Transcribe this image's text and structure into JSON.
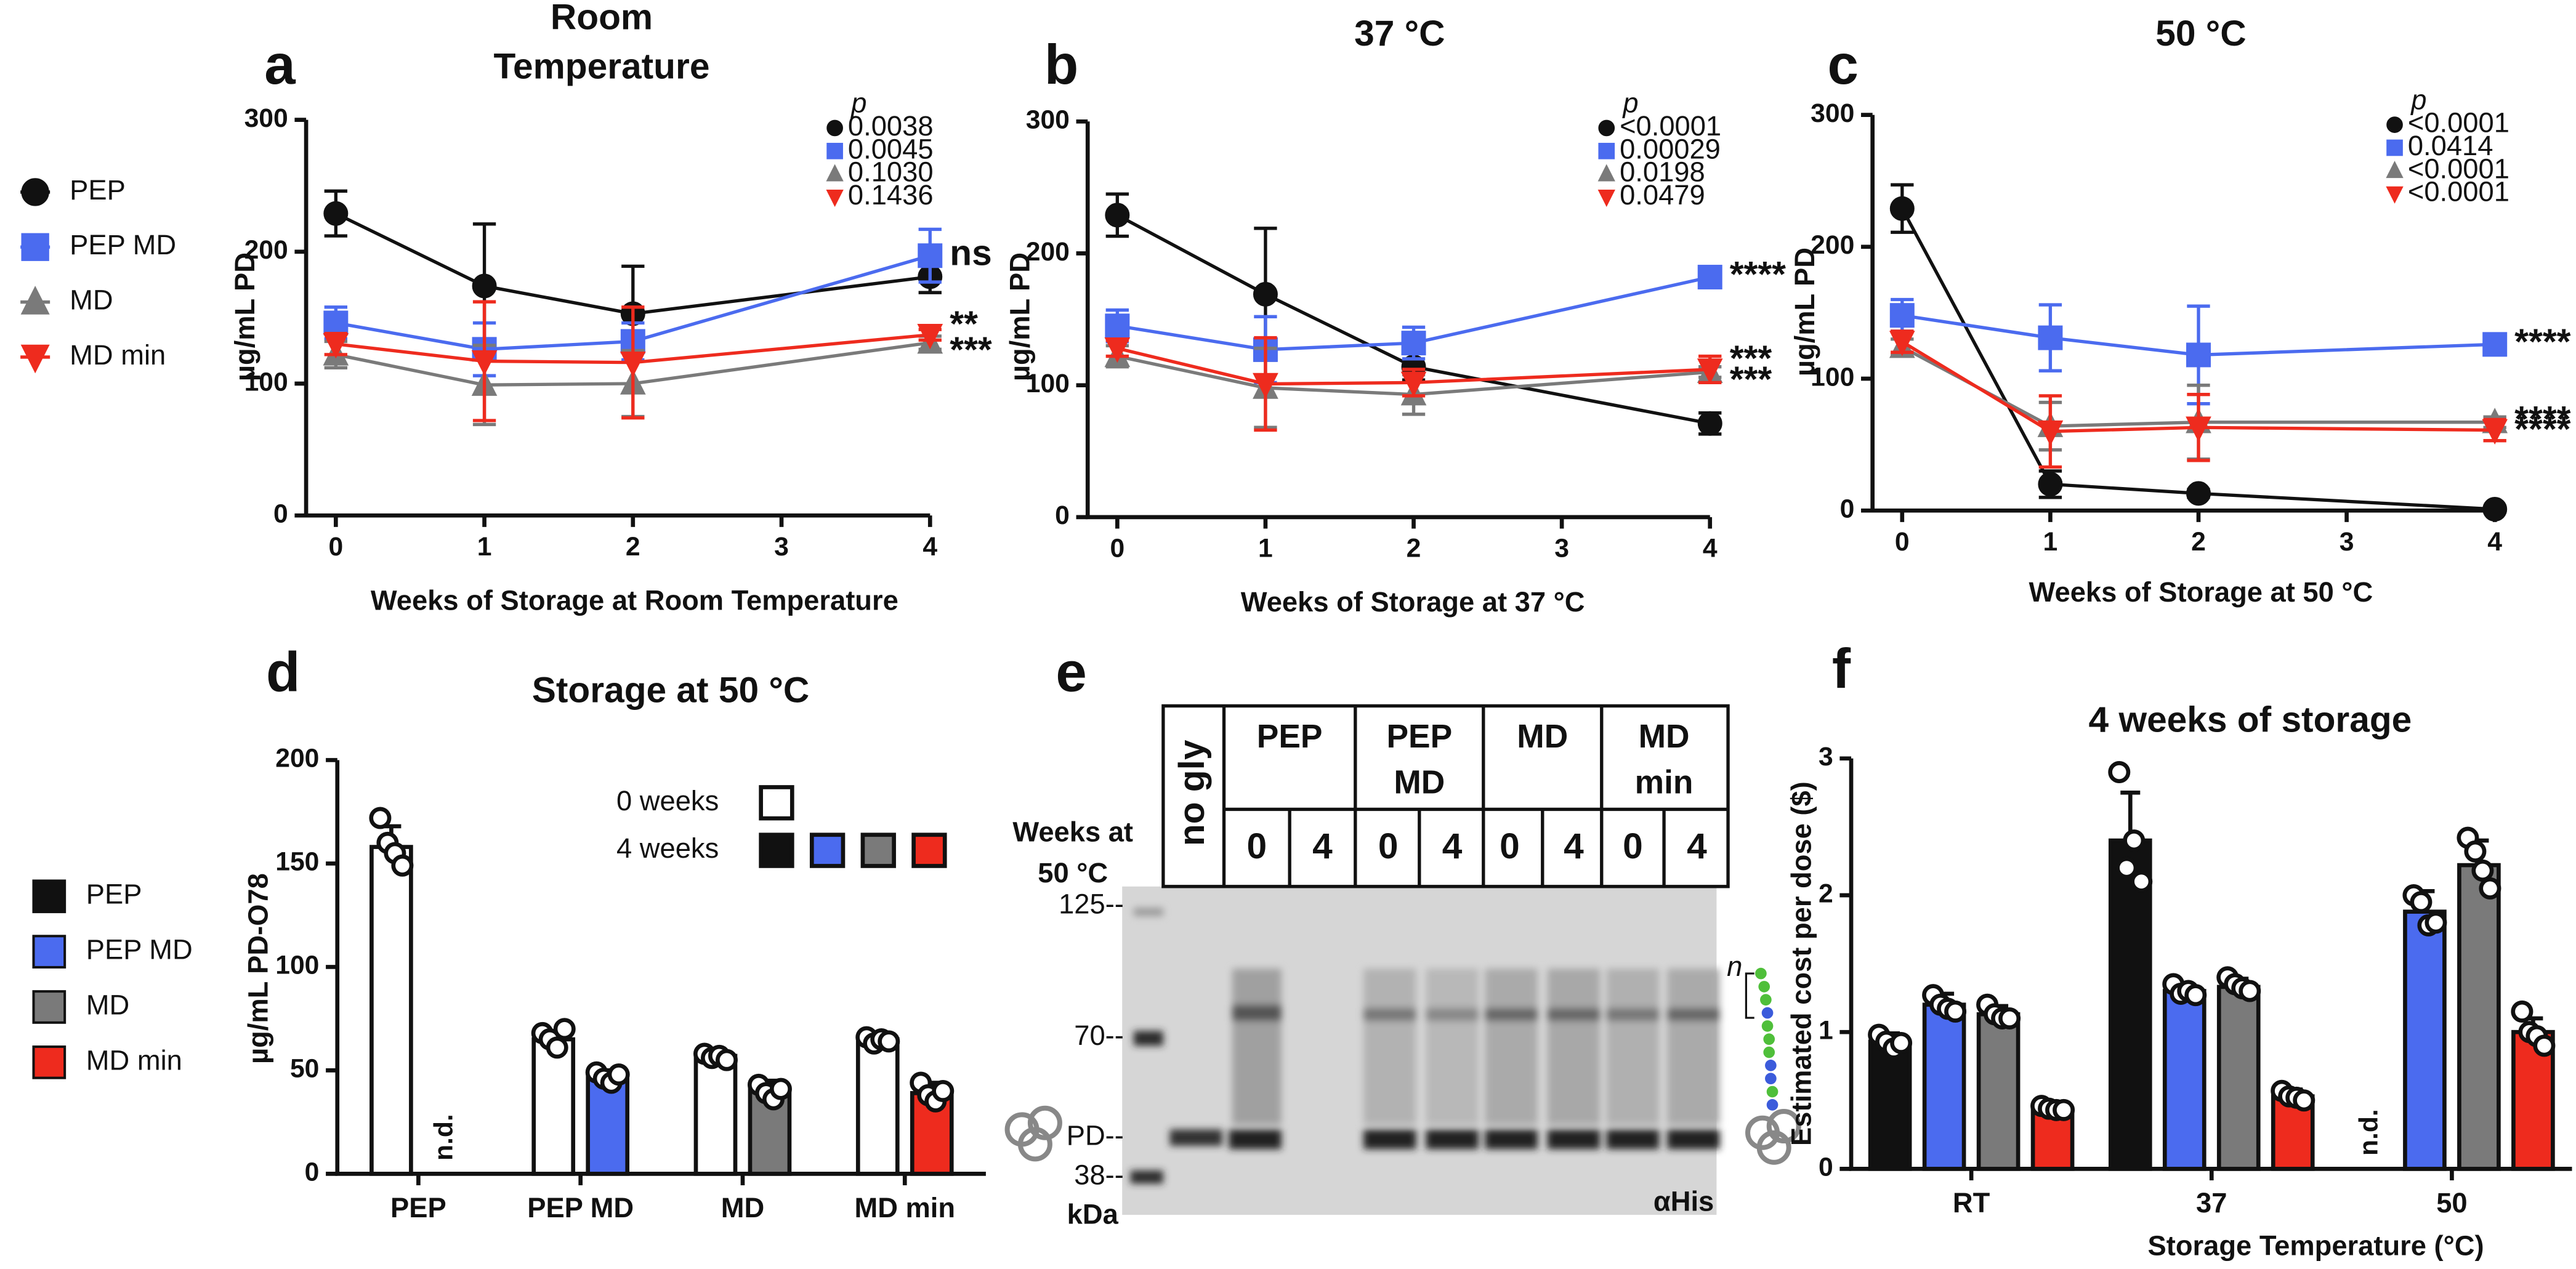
{
  "chart_data": [
    {
      "type": "line",
      "panel": "a",
      "title": [
        "Room",
        "Temperature"
      ],
      "xlabel": "Weeks of Storage at Room Temperature",
      "ylabel": "µg/mL PD",
      "x": [
        0,
        1,
        2,
        4
      ],
      "xlim": [
        -0.2,
        4
      ],
      "xticks": [
        0,
        1,
        2,
        3,
        4
      ],
      "ylim": [
        0,
        300
      ],
      "yticks": [
        0,
        100,
        200,
        300
      ],
      "p_label": "p",
      "series": [
        {
          "name": "PEP",
          "color": "#111111",
          "marker": "circle",
          "values": [
            229,
            174,
            153,
            181
          ],
          "errors": [
            17,
            47,
            36,
            12
          ],
          "p": "0.0038"
        },
        {
          "name": "PEP MD",
          "color": "#4b6bef",
          "marker": "square",
          "values": [
            146,
            126,
            132,
            197
          ],
          "errors": [
            12,
            20,
            14,
            20
          ],
          "p": "0.0045",
          "sig": "ns"
        },
        {
          "name": "MD",
          "color": "#7a7a7a",
          "marker": "triangle-up",
          "values": [
            122,
            99,
            100,
            131
          ],
          "errors": [
            10,
            30,
            25,
            5
          ],
          "p": "0.1030",
          "sig": "***"
        },
        {
          "name": "MD min",
          "color": "#ee2b1e",
          "marker": "triangle-down",
          "values": [
            130,
            117,
            116,
            137
          ],
          "errors": [
            8,
            45,
            42,
            4
          ],
          "p": "0.1436",
          "sig": "**"
        }
      ]
    },
    {
      "type": "line",
      "panel": "b",
      "title": [
        "37 °C"
      ],
      "xlabel": "Weeks of Storage at 37 °C",
      "ylabel": "µg/mL PD",
      "x": [
        0,
        1,
        2,
        4
      ],
      "xlim": [
        -0.2,
        4
      ],
      "xticks": [
        0,
        1,
        2,
        3,
        4
      ],
      "ylim": [
        0,
        300
      ],
      "yticks": [
        0,
        100,
        200,
        300
      ],
      "p_label": "p",
      "series": [
        {
          "color": "#111111",
          "marker": "circle",
          "values": [
            229,
            169,
            114,
            71
          ],
          "errors": [
            16,
            50,
            10,
            8
          ],
          "p": "<0.0001"
        },
        {
          "color": "#4b6bef",
          "marker": "square",
          "values": [
            145,
            127,
            132,
            182
          ],
          "errors": [
            12,
            25,
            12,
            6
          ],
          "p": "0.00029",
          "sig": "****"
        },
        {
          "color": "#7a7a7a",
          "marker": "triangle-up",
          "values": [
            122,
            98,
            93,
            110
          ],
          "errors": [
            8,
            30,
            15,
            4
          ],
          "p": "0.0198",
          "sig": "***"
        },
        {
          "color": "#ee2b1e",
          "marker": "triangle-down",
          "values": [
            128,
            101,
            102,
            112
          ],
          "errors": [
            6,
            35,
            10,
            10
          ],
          "p": "0.0479",
          "sig": "***"
        }
      ]
    },
    {
      "type": "line",
      "panel": "c",
      "title": [
        "50 °C"
      ],
      "xlabel": "Weeks of Storage at 50 °C",
      "ylabel": "µg/mL PD",
      "x": [
        0,
        1,
        2,
        4
      ],
      "xlim": [
        -0.2,
        4
      ],
      "xticks": [
        0,
        1,
        2,
        3,
        4
      ],
      "ylim": [
        0,
        300
      ],
      "yticks": [
        0,
        100,
        200,
        300
      ],
      "p_label": "p",
      "series": [
        {
          "color": "#111111",
          "marker": "circle",
          "values": [
            229,
            20,
            13,
            1
          ],
          "errors": [
            18,
            10,
            3,
            2
          ],
          "p": "<0.0001"
        },
        {
          "color": "#4b6bef",
          "marker": "square",
          "values": [
            148,
            131,
            118,
            126
          ],
          "errors": [
            12,
            25,
            37,
            8
          ],
          "p": "0.0414",
          "sig": "****"
        },
        {
          "color": "#7a7a7a",
          "marker": "triangle-up",
          "values": [
            124,
            64,
            67,
            67
          ],
          "errors": [
            6,
            18,
            28,
            4
          ],
          "p": "<0.0001",
          "sig": "****"
        },
        {
          "color": "#ee2b1e",
          "marker": "triangle-down",
          "values": [
            128,
            60,
            63,
            61
          ],
          "errors": [
            8,
            27,
            25,
            8
          ],
          "p": "<0.0001",
          "sig": "****"
        }
      ]
    },
    {
      "type": "bar",
      "panel": "d",
      "title": [
        "Storage at 50 °C"
      ],
      "ylabel": "µg/mL PD-O78",
      "legend": "inside",
      "nd_label": "n.d.",
      "categories": [
        "PEP",
        "PEP MD",
        "MD",
        "MD min"
      ],
      "ylim": [
        0,
        200
      ],
      "yticks": [
        0,
        50,
        100,
        150,
        200
      ],
      "series": [
        {
          "name": "0 weeks",
          "color": "#ffffff",
          "values": [
            158,
            65,
            57,
            65
          ],
          "errors": [
            10,
            4,
            2,
            3
          ],
          "points": [
            [
              172,
              160,
              155,
              149
            ],
            [
              68,
              65,
              61,
              70
            ],
            [
              58,
              56,
              57,
              55
            ],
            [
              66,
              63,
              65,
              64
            ]
          ]
        },
        {
          "name": "4 weeks",
          "colors": [
            "#111111",
            "#4b6bef",
            "#7a7a7a",
            "#ee2b1e"
          ],
          "values": [
            null,
            47,
            41,
            39
          ],
          "errors": [
            null,
            3,
            4,
            5
          ],
          "points": [
            null,
            [
              49,
              46,
              44,
              48
            ],
            [
              43,
              39,
              36,
              41
            ],
            [
              44,
              38,
              35,
              40
            ]
          ]
        }
      ]
    },
    {
      "type": "bar",
      "panel": "f",
      "title": [
        "4 weeks of storage"
      ],
      "xlabel": "Storage Temperature (°C)",
      "ylabel": "Estimated cost per dose ($)",
      "legend": "outside-left",
      "nd_label": "n.d.",
      "categories": [
        "RT",
        "37",
        "50"
      ],
      "ylim": [
        0,
        3
      ],
      "yticks": [
        0,
        1,
        2,
        3
      ],
      "series": [
        {
          "name": "PEP",
          "color": "#111111",
          "values": [
            0.93,
            2.4,
            null
          ],
          "errors": [
            0.06,
            0.35,
            null
          ],
          "points": [
            [
              0.98,
              0.93,
              0.88,
              0.92
            ],
            [
              2.9,
              2.2,
              2.4,
              2.1
            ],
            null
          ]
        },
        {
          "name": "PEP MD",
          "color": "#4b6bef",
          "values": [
            1.2,
            1.3,
            1.88
          ],
          "errors": [
            0.08,
            0.04,
            0.15
          ],
          "points": [
            [
              1.27,
              1.2,
              1.17,
              1.15
            ],
            [
              1.35,
              1.28,
              1.3,
              1.27
            ],
            [
              2.0,
              1.95,
              1.78,
              1.8
            ]
          ]
        },
        {
          "name": "MD",
          "color": "#7a7a7a",
          "values": [
            1.13,
            1.33,
            2.22
          ],
          "errors": [
            0.06,
            0.06,
            0.18
          ],
          "points": [
            [
              1.2,
              1.13,
              1.1,
              1.1
            ],
            [
              1.4,
              1.35,
              1.32,
              1.3
            ],
            [
              2.42,
              2.32,
              2.18,
              2.05
            ]
          ]
        },
        {
          "name": "MD min",
          "color": "#ee2b1e",
          "values": [
            0.44,
            0.53,
            1.0
          ],
          "errors": [
            0.03,
            0.05,
            0.1
          ],
          "points": [
            [
              0.46,
              0.44,
              0.43,
              0.43
            ],
            [
              0.57,
              0.53,
              0.52,
              0.5
            ],
            [
              1.15,
              1.0,
              0.97,
              0.9
            ]
          ]
        }
      ]
    }
  ],
  "gel": {
    "panel": "e",
    "row_label": [
      "Weeks at",
      "50 °C"
    ],
    "no_gly": "no gly",
    "groups": [
      {
        "label": [
          "PEP"
        ],
        "color": "#111111"
      },
      {
        "label": [
          "PEP",
          "MD"
        ],
        "color": "#4b6bef"
      },
      {
        "label": [
          "MD"
        ],
        "color": "#a6a6a6"
      },
      {
        "label": [
          "MD",
          "min"
        ],
        "color": "#ee2b1e"
      }
    ],
    "weeks": [
      "0",
      "4"
    ],
    "ladder": [
      "125--",
      "70--",
      "PD--",
      "38--"
    ],
    "ladder_unit": "kDa",
    "antibody": "αHis",
    "repeat": "n"
  }
}
